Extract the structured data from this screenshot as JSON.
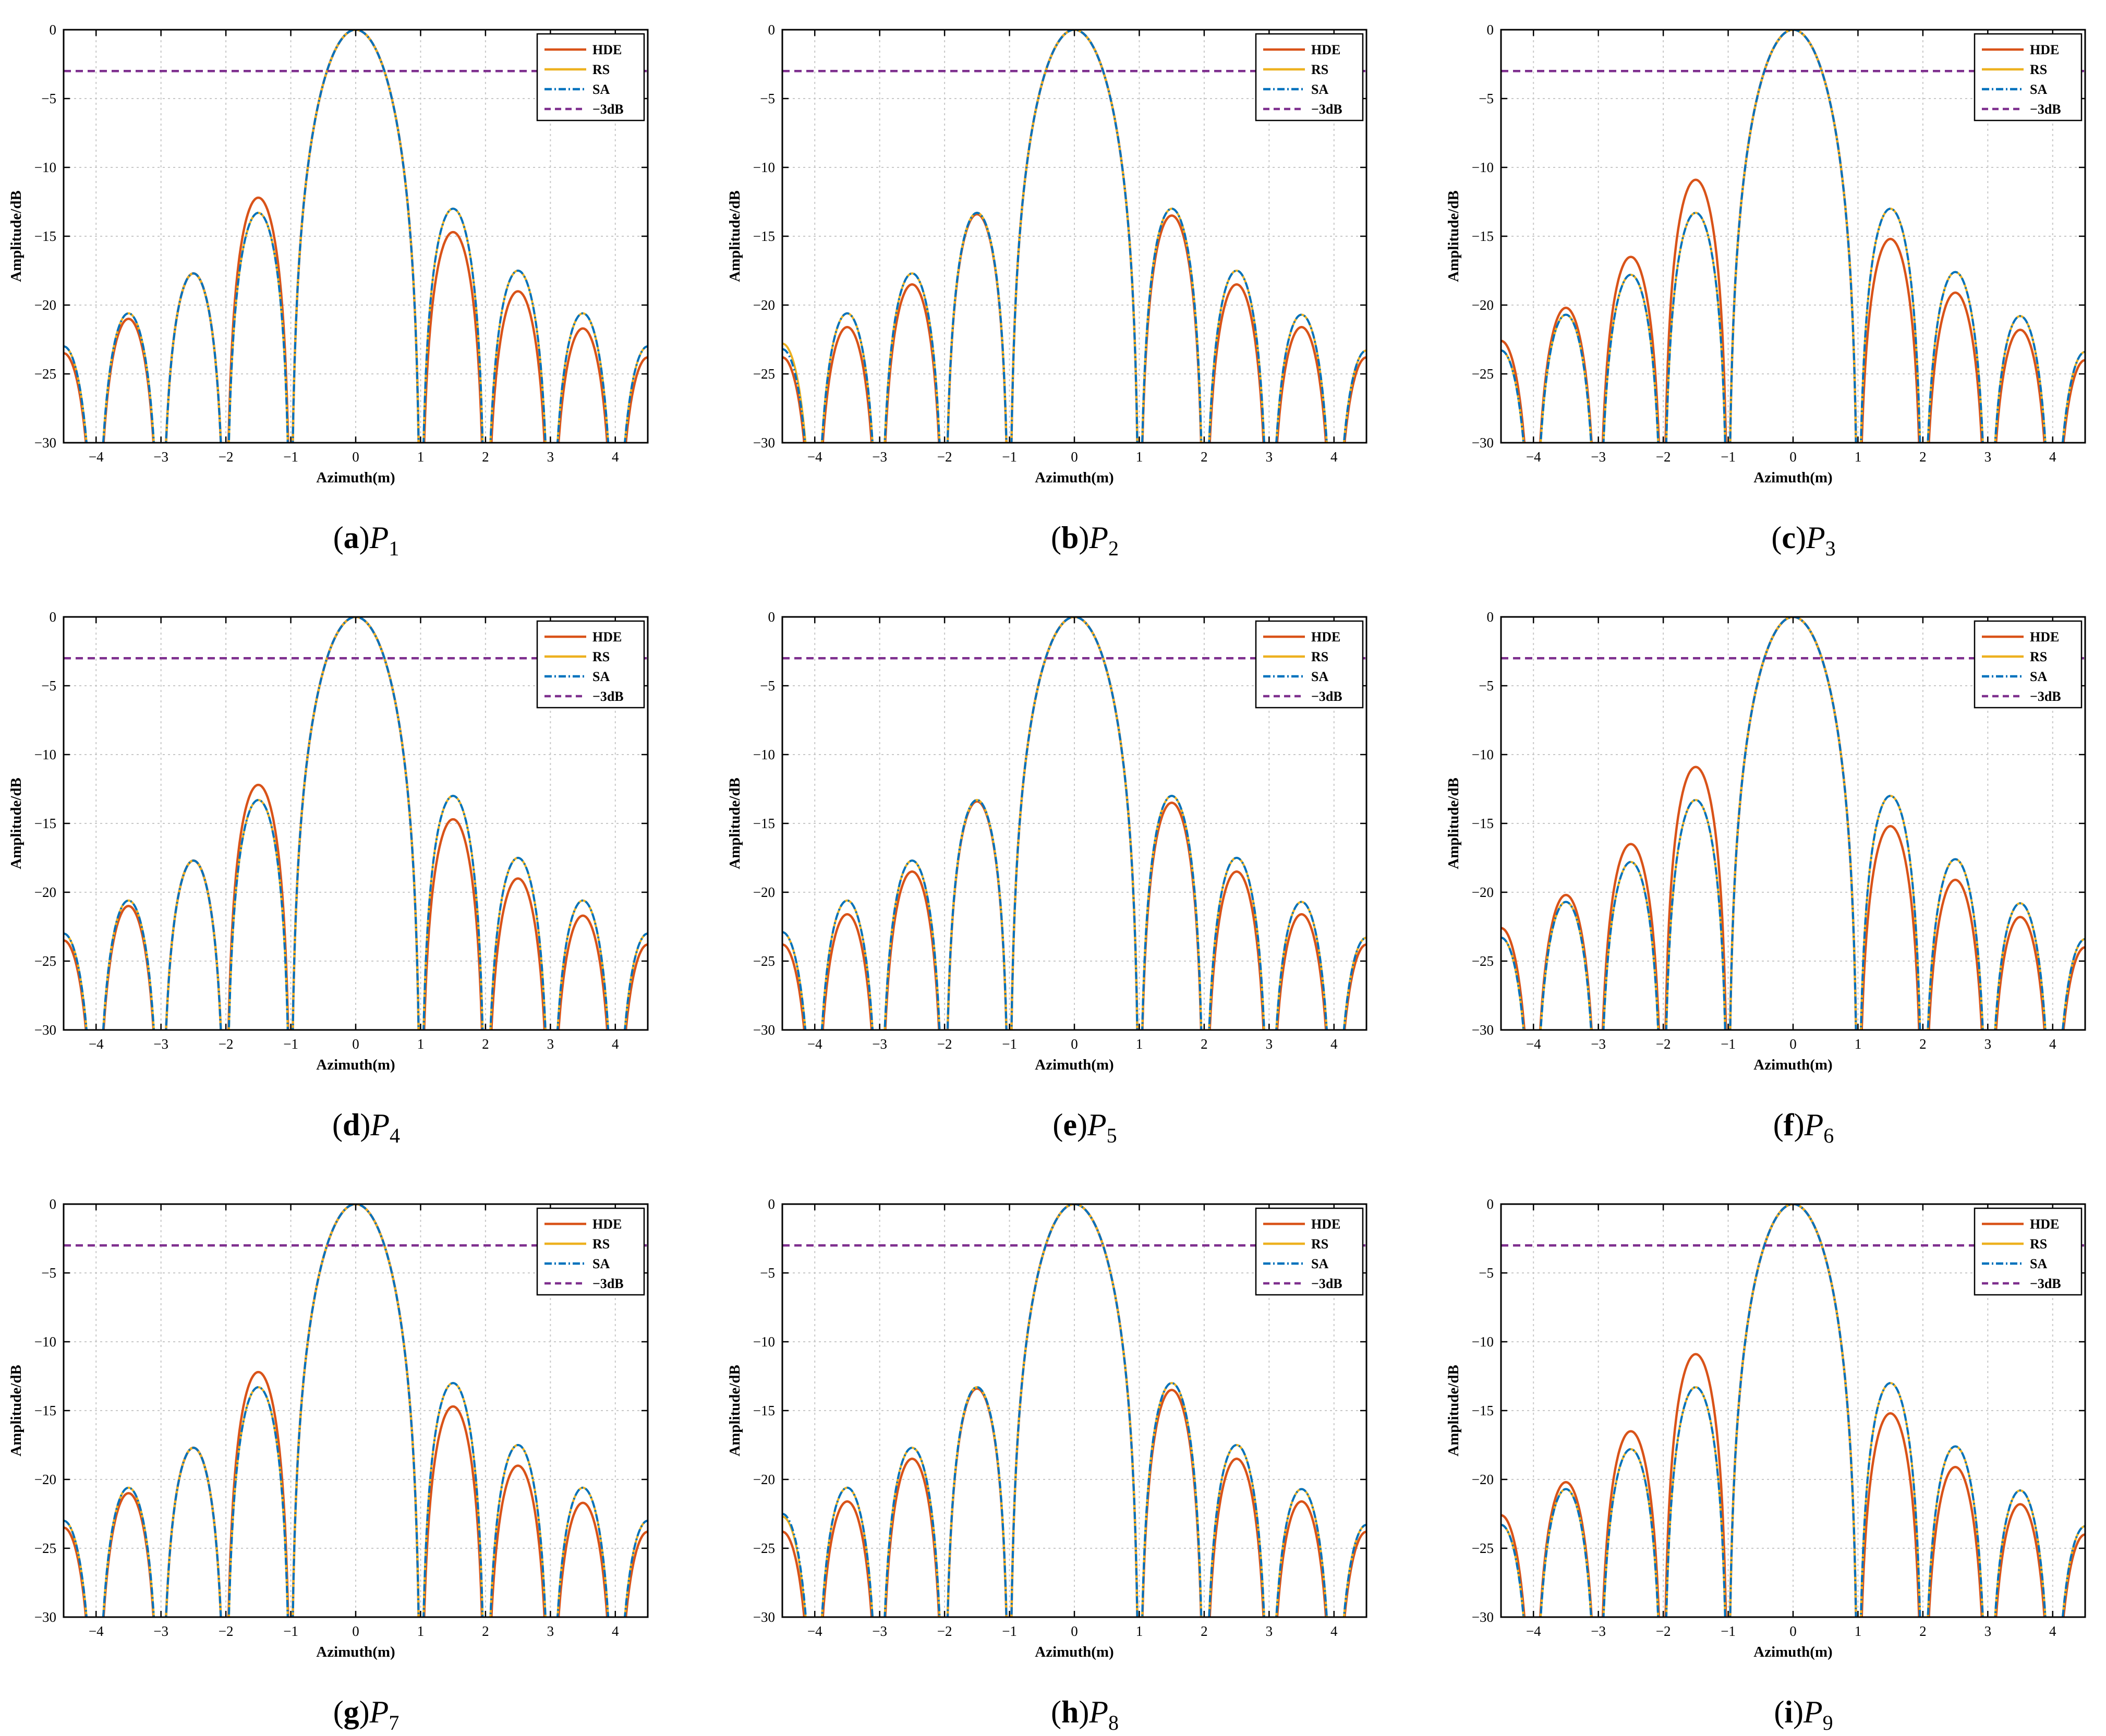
{
  "figure": {
    "legend_entries": [
      "HDE",
      "RS",
      "SA",
      "−3dB"
    ],
    "colors": {
      "HDE": "#D95319",
      "RS": "#EDB120",
      "SA": "#0072BD",
      "ref": "#7E2F8E"
    }
  },
  "chart_data": [
    {
      "type": "line",
      "caption_letter": "a",
      "caption_p": "P",
      "caption_sub": "1",
      "xlabel": "Azimuth(m)",
      "ylabel": "Amplitude/dB",
      "xlim": [
        -4.5,
        4.5
      ],
      "ylim": [
        -30,
        0
      ],
      "xticks": [
        -4,
        -3,
        -2,
        -1,
        0,
        1,
        2,
        3,
        4
      ],
      "yticks": [
        0,
        -5,
        -10,
        -15,
        -20,
        -25,
        -30
      ],
      "reference_line": {
        "name": "−3dB",
        "y": -3
      },
      "series": [
        {
          "name": "HDE",
          "sidelobe_peaks_left": [
            -23.5,
            -21.0,
            -17.7,
            -12.2
          ],
          "sidelobe_peaks_right": [
            -14.7,
            -19.0,
            -21.7,
            -23.8
          ]
        },
        {
          "name": "RS",
          "sidelobe_peaks_left": [
            -23.0,
            -20.6,
            -17.7,
            -13.3
          ],
          "sidelobe_peaks_right": [
            -13.0,
            -17.5,
            -20.6,
            -23.0
          ]
        },
        {
          "name": "SA",
          "sidelobe_peaks_left": [
            -23.0,
            -20.6,
            -17.7,
            -13.3
          ],
          "sidelobe_peaks_right": [
            -13.0,
            -17.5,
            -20.6,
            -23.0
          ]
        }
      ]
    },
    {
      "type": "line",
      "caption_letter": "b",
      "caption_p": "P",
      "caption_sub": "2",
      "xlabel": "Azimuth(m)",
      "ylabel": "Amplitude/dB",
      "xlim": [
        -4.5,
        4.5
      ],
      "ylim": [
        -30,
        0
      ],
      "xticks": [
        -4,
        -3,
        -2,
        -1,
        0,
        1,
        2,
        3,
        4
      ],
      "yticks": [
        0,
        -5,
        -10,
        -15,
        -20,
        -25,
        -30
      ],
      "reference_line": {
        "name": "−3dB",
        "y": -3
      },
      "series": [
        {
          "name": "HDE",
          "sidelobe_peaks_left": [
            -23.8,
            -21.6,
            -18.5,
            -13.4
          ],
          "sidelobe_peaks_right": [
            -13.5,
            -18.5,
            -21.6,
            -23.8
          ]
        },
        {
          "name": "RS",
          "sidelobe_peaks_left": [
            -22.8,
            -20.6,
            -17.7,
            -13.3
          ],
          "sidelobe_peaks_right": [
            -13.0,
            -17.5,
            -20.7,
            -23.3
          ]
        },
        {
          "name": "SA",
          "sidelobe_peaks_left": [
            -23.2,
            -20.6,
            -17.7,
            -13.3
          ],
          "sidelobe_peaks_right": [
            -13.0,
            -17.5,
            -20.7,
            -23.3
          ]
        }
      ]
    },
    {
      "type": "line",
      "caption_letter": "c",
      "caption_p": "P",
      "caption_sub": "3",
      "xlabel": "Azimuth(m)",
      "ylabel": "Amplitude/dB",
      "xlim": [
        -4.5,
        4.5
      ],
      "ylim": [
        -30,
        0
      ],
      "xticks": [
        -4,
        -3,
        -2,
        -1,
        0,
        1,
        2,
        3,
        4
      ],
      "yticks": [
        0,
        -5,
        -10,
        -15,
        -20,
        -25,
        -30
      ],
      "reference_line": {
        "name": "−3dB",
        "y": -3
      },
      "series": [
        {
          "name": "HDE",
          "sidelobe_peaks_left": [
            -22.6,
            -20.2,
            -16.5,
            -10.9
          ],
          "sidelobe_peaks_right": [
            -15.2,
            -19.1,
            -21.8,
            -24.0
          ]
        },
        {
          "name": "RS",
          "sidelobe_peaks_left": [
            -23.3,
            -20.7,
            -17.8,
            -13.3
          ],
          "sidelobe_peaks_right": [
            -13.0,
            -17.6,
            -20.8,
            -23.4
          ]
        },
        {
          "name": "SA",
          "sidelobe_peaks_left": [
            -23.3,
            -20.7,
            -17.8,
            -13.3
          ],
          "sidelobe_peaks_right": [
            -13.0,
            -17.6,
            -20.8,
            -23.4
          ]
        }
      ]
    },
    {
      "type": "line",
      "caption_letter": "d",
      "caption_p": "P",
      "caption_sub": "4",
      "xlabel": "Azimuth(m)",
      "ylabel": "Amplitude/dB",
      "xlim": [
        -4.5,
        4.5
      ],
      "ylim": [
        -30,
        0
      ],
      "xticks": [
        -4,
        -3,
        -2,
        -1,
        0,
        1,
        2,
        3,
        4
      ],
      "yticks": [
        0,
        -5,
        -10,
        -15,
        -20,
        -25,
        -30
      ],
      "reference_line": {
        "name": "−3dB",
        "y": -3
      },
      "series": [
        {
          "name": "HDE",
          "sidelobe_peaks_left": [
            -23.5,
            -21.0,
            -17.7,
            -12.2
          ],
          "sidelobe_peaks_right": [
            -14.7,
            -19.0,
            -21.7,
            -23.8
          ]
        },
        {
          "name": "RS",
          "sidelobe_peaks_left": [
            -23.0,
            -20.6,
            -17.7,
            -13.3
          ],
          "sidelobe_peaks_right": [
            -13.0,
            -17.5,
            -20.6,
            -23.0
          ]
        },
        {
          "name": "SA",
          "sidelobe_peaks_left": [
            -23.0,
            -20.6,
            -17.7,
            -13.3
          ],
          "sidelobe_peaks_right": [
            -13.0,
            -17.5,
            -20.6,
            -23.0
          ]
        }
      ]
    },
    {
      "type": "line",
      "caption_letter": "e",
      "caption_p": "P",
      "caption_sub": "5",
      "xlabel": "Azimuth(m)",
      "ylabel": "Amplitude/dB",
      "xlim": [
        -4.5,
        4.5
      ],
      "ylim": [
        -30,
        0
      ],
      "xticks": [
        -4,
        -3,
        -2,
        -1,
        0,
        1,
        2,
        3,
        4
      ],
      "yticks": [
        0,
        -5,
        -10,
        -15,
        -20,
        -25,
        -30
      ],
      "reference_line": {
        "name": "−3dB",
        "y": -3
      },
      "series": [
        {
          "name": "HDE",
          "sidelobe_peaks_left": [
            -23.8,
            -21.6,
            -18.5,
            -13.4
          ],
          "sidelobe_peaks_right": [
            -13.5,
            -18.5,
            -21.6,
            -23.8
          ]
        },
        {
          "name": "RS",
          "sidelobe_peaks_left": [
            -22.9,
            -20.6,
            -17.7,
            -13.3
          ],
          "sidelobe_peaks_right": [
            -13.0,
            -17.5,
            -20.7,
            -23.3
          ]
        },
        {
          "name": "SA",
          "sidelobe_peaks_left": [
            -22.9,
            -20.6,
            -17.7,
            -13.3
          ],
          "sidelobe_peaks_right": [
            -13.0,
            -17.5,
            -20.7,
            -23.3
          ]
        }
      ]
    },
    {
      "type": "line",
      "caption_letter": "f",
      "caption_p": "P",
      "caption_sub": "6",
      "xlabel": "Azimuth(m)",
      "ylabel": "Amplitude/dB",
      "xlim": [
        -4.5,
        4.5
      ],
      "ylim": [
        -30,
        0
      ],
      "xticks": [
        -4,
        -3,
        -2,
        -1,
        0,
        1,
        2,
        3,
        4
      ],
      "yticks": [
        0,
        -5,
        -10,
        -15,
        -20,
        -25,
        -30
      ],
      "reference_line": {
        "name": "−3dB",
        "y": -3
      },
      "series": [
        {
          "name": "HDE",
          "sidelobe_peaks_left": [
            -22.6,
            -20.2,
            -16.5,
            -10.9
          ],
          "sidelobe_peaks_right": [
            -15.2,
            -19.1,
            -21.8,
            -24.0
          ]
        },
        {
          "name": "RS",
          "sidelobe_peaks_left": [
            -23.3,
            -20.7,
            -17.8,
            -13.3
          ],
          "sidelobe_peaks_right": [
            -13.0,
            -17.6,
            -20.8,
            -23.4
          ]
        },
        {
          "name": "SA",
          "sidelobe_peaks_left": [
            -23.3,
            -20.7,
            -17.8,
            -13.3
          ],
          "sidelobe_peaks_right": [
            -13.0,
            -17.6,
            -20.8,
            -23.4
          ]
        }
      ]
    },
    {
      "type": "line",
      "caption_letter": "g",
      "caption_p": "P",
      "caption_sub": "7",
      "xlabel": "Azimuth(m)",
      "ylabel": "Amplitude/dB",
      "xlim": [
        -4.5,
        4.5
      ],
      "ylim": [
        -30,
        0
      ],
      "xticks": [
        -4,
        -3,
        -2,
        -1,
        0,
        1,
        2,
        3,
        4
      ],
      "yticks": [
        0,
        -5,
        -10,
        -15,
        -20,
        -25,
        -30
      ],
      "reference_line": {
        "name": "−3dB",
        "y": -3
      },
      "series": [
        {
          "name": "HDE",
          "sidelobe_peaks_left": [
            -23.5,
            -21.0,
            -17.7,
            -12.2
          ],
          "sidelobe_peaks_right": [
            -14.7,
            -19.0,
            -21.7,
            -23.8
          ]
        },
        {
          "name": "RS",
          "sidelobe_peaks_left": [
            -23.0,
            -20.6,
            -17.7,
            -13.3
          ],
          "sidelobe_peaks_right": [
            -13.0,
            -17.5,
            -20.6,
            -23.0
          ]
        },
        {
          "name": "SA",
          "sidelobe_peaks_left": [
            -23.0,
            -20.6,
            -17.7,
            -13.3
          ],
          "sidelobe_peaks_right": [
            -13.0,
            -17.5,
            -20.6,
            -23.0
          ]
        }
      ]
    },
    {
      "type": "line",
      "caption_letter": "h",
      "caption_p": "P",
      "caption_sub": "8",
      "xlabel": "Azimuth(m)",
      "ylabel": "Amplitude/dB",
      "xlim": [
        -4.5,
        4.5
      ],
      "ylim": [
        -30,
        0
      ],
      "xticks": [
        -4,
        -3,
        -2,
        -1,
        0,
        1,
        2,
        3,
        4
      ],
      "yticks": [
        0,
        -5,
        -10,
        -15,
        -20,
        -25,
        -30
      ],
      "reference_line": {
        "name": "−3dB",
        "y": -3
      },
      "series": [
        {
          "name": "HDE",
          "sidelobe_peaks_left": [
            -23.8,
            -21.6,
            -18.5,
            -13.4
          ],
          "sidelobe_peaks_right": [
            -13.5,
            -18.5,
            -21.6,
            -23.8
          ]
        },
        {
          "name": "RS",
          "sidelobe_peaks_left": [
            -22.7,
            -20.6,
            -17.7,
            -13.3
          ],
          "sidelobe_peaks_right": [
            -13.0,
            -17.5,
            -20.7,
            -23.3
          ]
        },
        {
          "name": "SA",
          "sidelobe_peaks_left": [
            -22.5,
            -20.6,
            -17.7,
            -13.3
          ],
          "sidelobe_peaks_right": [
            -13.0,
            -17.5,
            -20.7,
            -23.3
          ]
        }
      ]
    },
    {
      "type": "line",
      "caption_letter": "i",
      "caption_p": "P",
      "caption_sub": "9",
      "xlabel": "Azimuth(m)",
      "ylabel": "Amplitude/dB",
      "xlim": [
        -4.5,
        4.5
      ],
      "ylim": [
        -30,
        0
      ],
      "xticks": [
        -4,
        -3,
        -2,
        -1,
        0,
        1,
        2,
        3,
        4
      ],
      "yticks": [
        0,
        -5,
        -10,
        -15,
        -20,
        -25,
        -30
      ],
      "reference_line": {
        "name": "−3dB",
        "y": -3
      },
      "series": [
        {
          "name": "HDE",
          "sidelobe_peaks_left": [
            -22.6,
            -20.2,
            -16.5,
            -10.9
          ],
          "sidelobe_peaks_right": [
            -15.2,
            -19.1,
            -21.8,
            -24.0
          ]
        },
        {
          "name": "RS",
          "sidelobe_peaks_left": [
            -23.3,
            -20.7,
            -17.8,
            -13.3
          ],
          "sidelobe_peaks_right": [
            -13.0,
            -17.6,
            -20.8,
            -23.4
          ]
        },
        {
          "name": "SA",
          "sidelobe_peaks_left": [
            -23.3,
            -20.7,
            -17.8,
            -13.3
          ],
          "sidelobe_peaks_right": [
            -13.0,
            -17.6,
            -20.8,
            -23.4
          ]
        }
      ]
    }
  ]
}
